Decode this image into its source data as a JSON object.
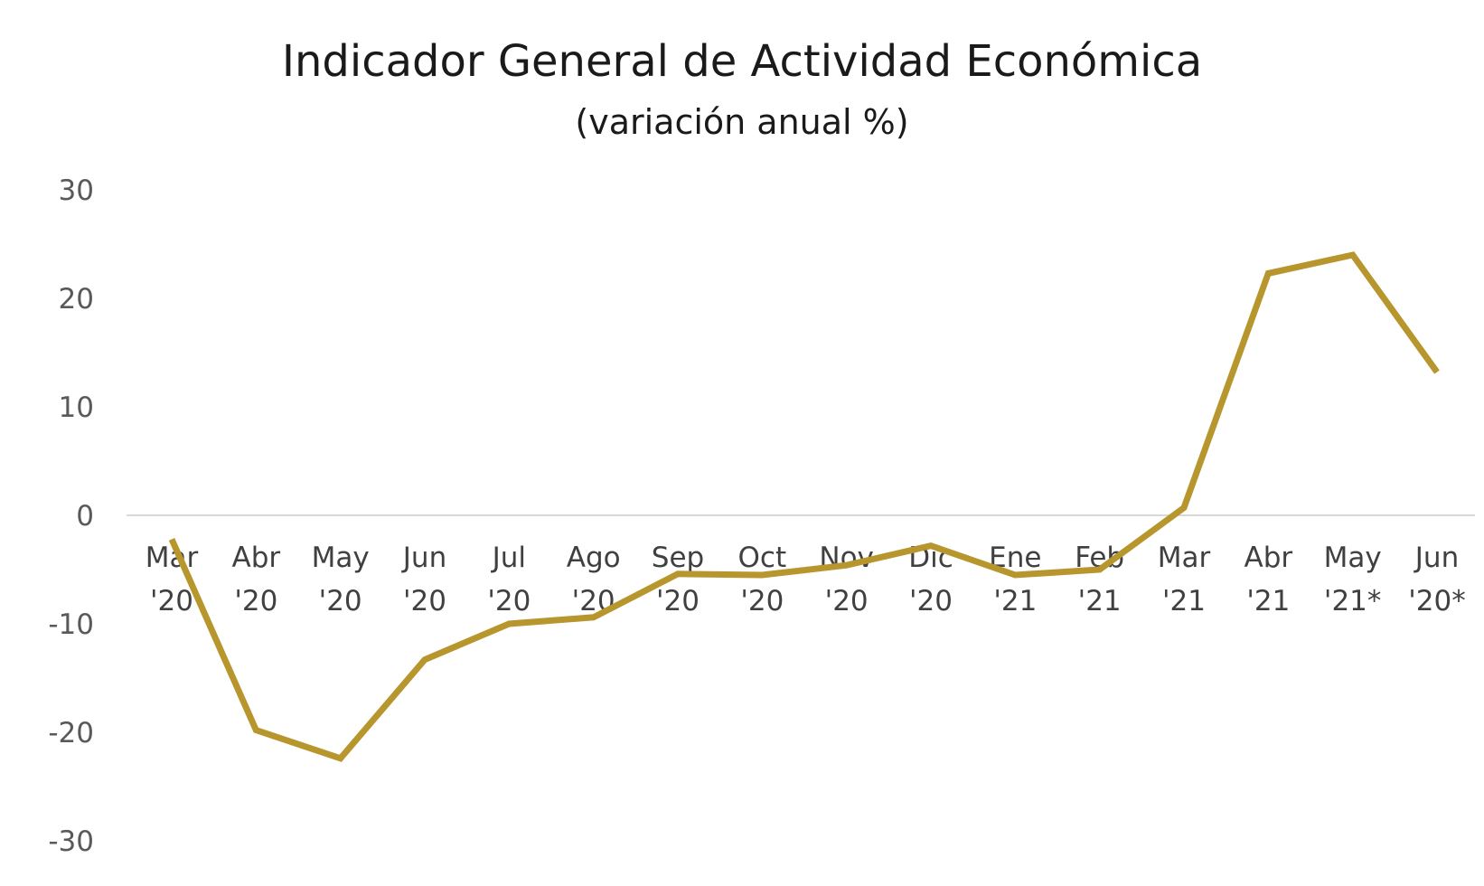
{
  "chart_data": {
    "type": "line",
    "title": "Indicador General de Actividad Económica",
    "subtitle": "(variación anual %)",
    "xlabel": "",
    "ylabel": "",
    "categories": [
      [
        "Mar",
        "'20"
      ],
      [
        "Abr",
        "'20"
      ],
      [
        "May",
        "'20"
      ],
      [
        "Jun",
        "'20"
      ],
      [
        "Jul",
        "'20"
      ],
      [
        "Ago",
        "'20"
      ],
      [
        "Sep",
        "'20"
      ],
      [
        "Oct",
        "'20"
      ],
      [
        "Nov",
        "'20"
      ],
      [
        "Dic",
        "'20"
      ],
      [
        "Ene",
        "'21"
      ],
      [
        "Feb",
        "'21"
      ],
      [
        "Mar",
        "'21"
      ],
      [
        "Abr",
        "'21"
      ],
      [
        "May",
        "'21*"
      ],
      [
        "Jun",
        "'20*"
      ]
    ],
    "series": [
      {
        "values": [
          -2.2,
          -19.8,
          -22.4,
          -13.3,
          -10.0,
          -9.4,
          -5.4,
          -5.5,
          -4.6,
          -2.8,
          -5.5,
          -5.0,
          0.7,
          22.3,
          24.0,
          13.2
        ],
        "color": "#b8962e"
      }
    ],
    "ylim": [
      -30,
      30
    ],
    "yticks": [
      30,
      20,
      10,
      0,
      -10,
      -20,
      -30
    ],
    "grid": false,
    "legend": "none"
  }
}
